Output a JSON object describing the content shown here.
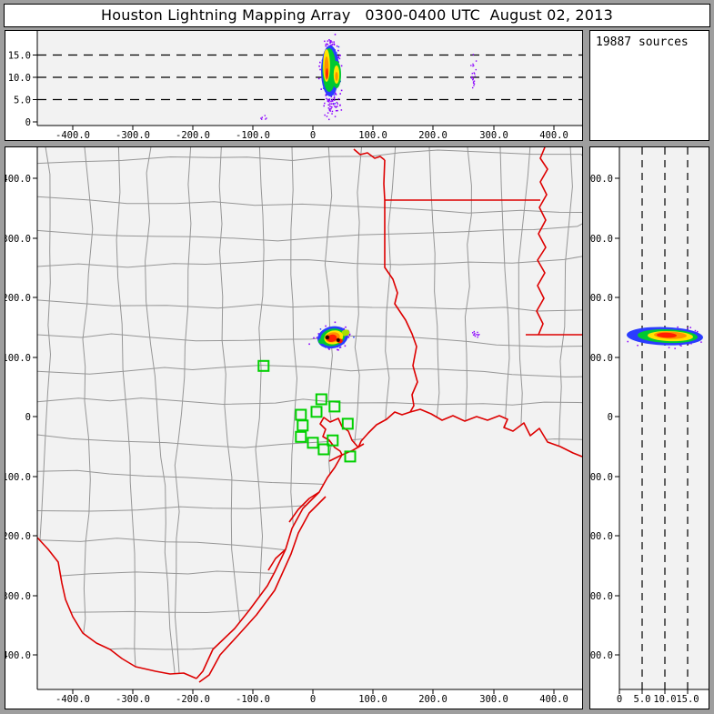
{
  "title": "Houston Lightning Mapping Array   0300-0400 UTC  August 02, 2013",
  "sources_label": "19887 sources",
  "total_sources": 19887,
  "colors": {
    "frame": "#9e9e9e",
    "panel_bg": "#f2f2f2",
    "county_line": "#969696",
    "state_border": "#dd0000",
    "station": "#00d000",
    "density_scale": [
      "#8a00ff",
      "#2a3cff",
      "#00c9ff",
      "#00c832",
      "#a8e000",
      "#ffe400",
      "#ff9100",
      "#ff1e00",
      "#4a0000"
    ]
  },
  "axes": {
    "ew_ticks": [
      "-400.0",
      "-300.0",
      "-200.0",
      "-100.0",
      "0",
      "100.0",
      "200.0",
      "300.0",
      "400.0"
    ],
    "ns_ticks": [
      "400.0",
      "300.0",
      "200.0",
      "100.0",
      "0",
      "-100.0",
      "-200.0",
      "-300.0",
      "-400.0"
    ],
    "alt_ticks_top": [
      "15.0",
      "10.0",
      "5.0",
      "0"
    ],
    "alt_ticks_right": [
      "0",
      "5.0",
      "10.0",
      "15.0"
    ]
  },
  "chart_data": [
    {
      "id": "altitude-vs-east-west",
      "type": "scatter",
      "x_axis": {
        "range_km": [
          -455,
          450
        ],
        "ticks": [
          -400,
          -300,
          -200,
          -100,
          0,
          100,
          200,
          300,
          400
        ]
      },
      "alt_axis": {
        "range_km": [
          0,
          20
        ],
        "dashed_gridlines_km": [
          5,
          10,
          15
        ]
      },
      "clusters": [
        {
          "x_km": [
            13,
            60
          ],
          "alt_km": [
            1,
            19
          ],
          "core_alt_km": [
            8,
            16
          ],
          "core_x_km": [
            20,
            45
          ],
          "density": "dense"
        },
        {
          "x_km": [
            258,
            276
          ],
          "alt_km": [
            7,
            13
          ],
          "density": "sparse"
        },
        {
          "x_km": [
            -95,
            -84
          ],
          "alt_km": [
            1,
            2
          ],
          "density": "trace"
        }
      ]
    },
    {
      "id": "plan-view-map",
      "type": "scatter-map",
      "x_axis": {
        "range_km": [
          -455,
          450
        ],
        "ticks": [
          -400,
          -300,
          -200,
          -100,
          0,
          100,
          200,
          300,
          400
        ]
      },
      "y_axis": {
        "range_km": [
          -455,
          450
        ],
        "ticks": [
          400,
          300,
          200,
          100,
          0,
          -100,
          -200,
          -300,
          -400
        ]
      },
      "storm_cluster": {
        "x_km": [
          15,
          62
        ],
        "y_km": [
          112,
          158
        ],
        "center_km": [
          33,
          133
        ]
      },
      "sparse_cluster": {
        "x_km": [
          262,
          276
        ],
        "y_km": [
          127,
          152
        ]
      },
      "stations_km": [
        [
          -82,
          85
        ],
        [
          14,
          29
        ],
        [
          36,
          17
        ],
        [
          6,
          8
        ],
        [
          -20,
          3
        ],
        [
          -17,
          -15
        ],
        [
          58,
          -12
        ],
        [
          -20,
          -34
        ],
        [
          33,
          -40
        ],
        [
          0,
          -44
        ],
        [
          18,
          -55
        ],
        [
          62,
          -67
        ]
      ],
      "map_features": [
        "county boundaries (gray)",
        "state borders and Gulf coastline (red)"
      ]
    },
    {
      "id": "altitude-vs-north-south",
      "type": "scatter",
      "alt_axis": {
        "range_km": [
          0,
          20
        ],
        "dashed_gridlines_km": [
          5,
          10,
          15
        ]
      },
      "y_axis": {
        "range_km": [
          -455,
          450
        ]
      },
      "clusters": [
        {
          "y_km": [
            112,
            158
          ],
          "alt_km": [
            1,
            19
          ],
          "core_alt_km": [
            8,
            16
          ],
          "density": "dense"
        }
      ]
    }
  ]
}
